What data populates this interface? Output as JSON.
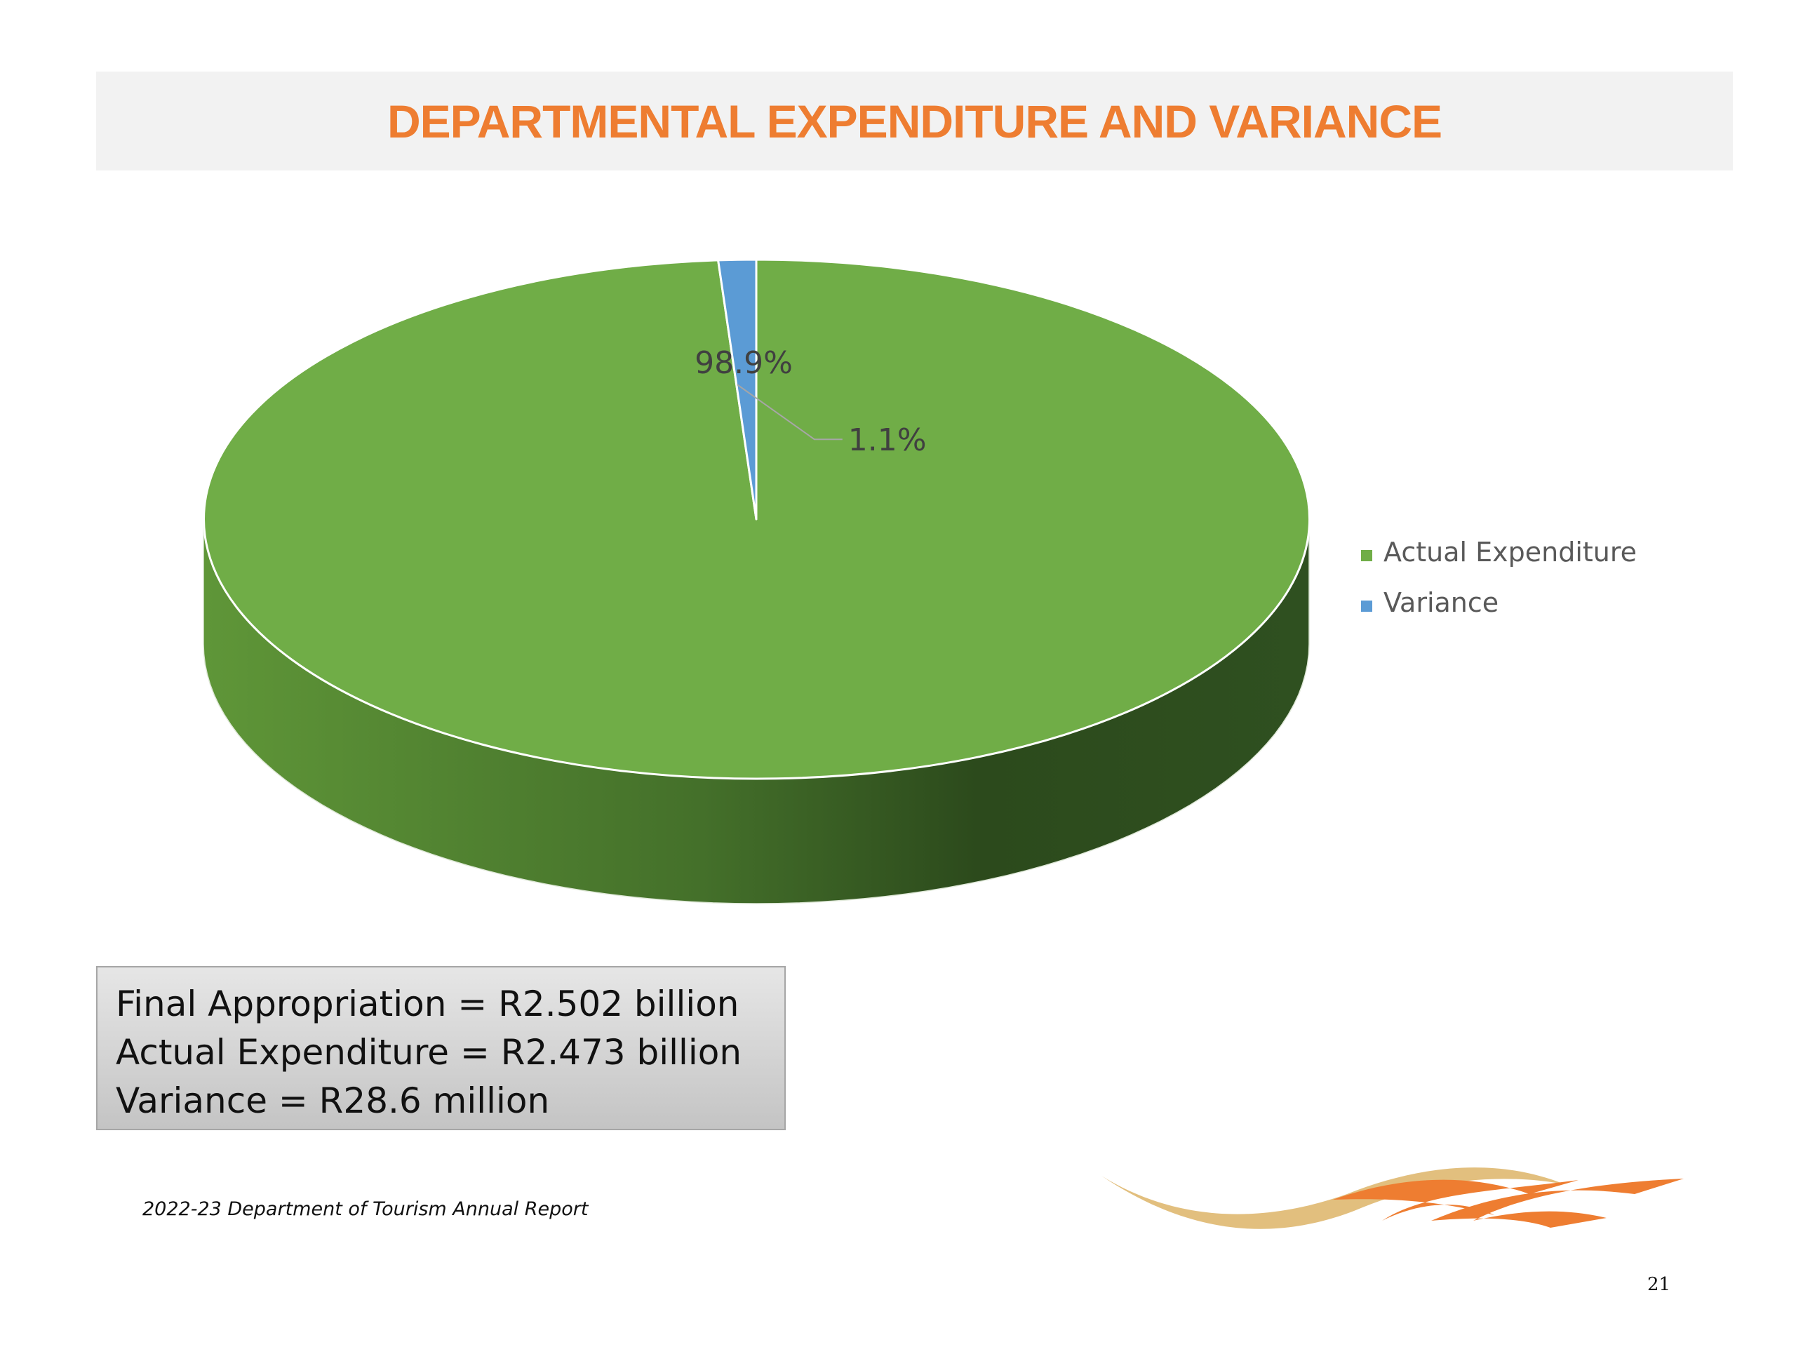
{
  "title": "DEPARTMENTAL EXPENDITURE AND VARIANCE",
  "info_box": {
    "lines": [
      "Final Appropriation = R2.502 billion",
      "Actual Expenditure = R2.473 billion",
      "Variance = R28.6 million"
    ]
  },
  "footer": "2022-23 Department of Tourism Annual Report",
  "page_number": "21",
  "chart_data": {
    "type": "pie",
    "style": "3d",
    "slices": [
      {
        "label": "Actual Expenditure",
        "value": 98.9,
        "data_label": "98.9%",
        "color": "#70ad47"
      },
      {
        "label": "Variance",
        "value": 1.1,
        "data_label": "1.1%",
        "color": "#5b9bd5"
      }
    ],
    "legend_position": "right"
  },
  "colors": {
    "title": "#ee7d31",
    "title_background": "#f2f2f2",
    "logo_gold": "#e2bf7e",
    "logo_orange": "#ee7d31"
  }
}
